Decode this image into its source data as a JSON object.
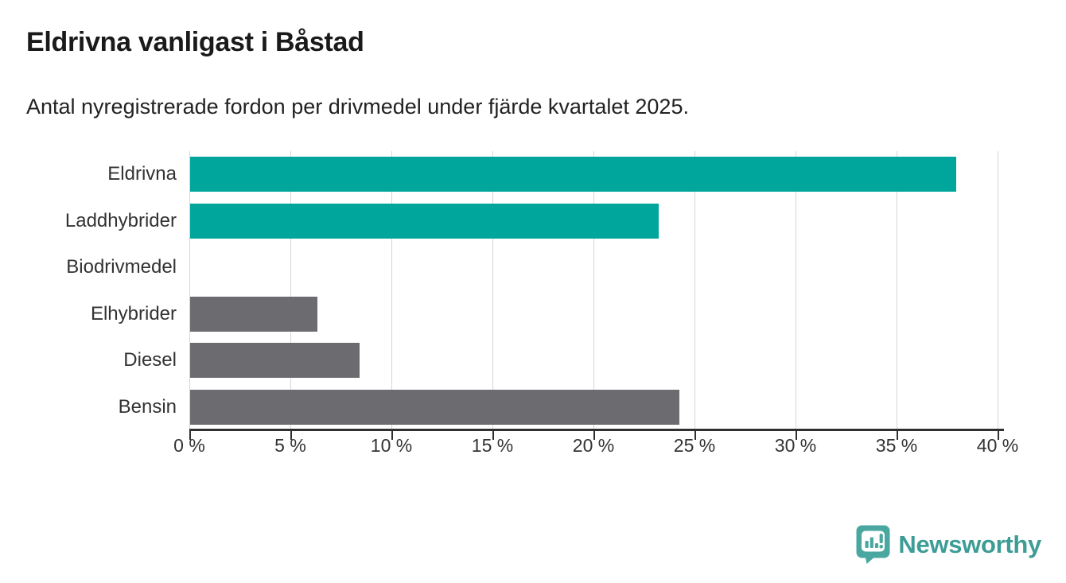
{
  "chart_data": {
    "type": "bar",
    "orientation": "horizontal",
    "title": "Eldrivna vanligast i Båstad",
    "subtitle": "Antal nyregistrerade fordon per drivmedel under fjärde kvartalet 2025.",
    "categories": [
      "Eldrivna",
      "Laddhybrider",
      "Biodrivmedel",
      "Elhybrider",
      "Diesel",
      "Bensin"
    ],
    "values": [
      37.9,
      23.2,
      0,
      6.3,
      8.4,
      24.2
    ],
    "unit": "%",
    "bar_colors": [
      "#00a69b",
      "#00a69b",
      "#6b6b70",
      "#6b6b70",
      "#6b6b70",
      "#6b6b70"
    ],
    "xlim": [
      0,
      40
    ],
    "xticks": [
      {
        "value": 0,
        "label": "0 %"
      },
      {
        "value": 5,
        "label": "5 %"
      },
      {
        "value": 10,
        "label": "10 %"
      },
      {
        "value": 15,
        "label": "15 %"
      },
      {
        "value": 20,
        "label": "20 %"
      },
      {
        "value": 25,
        "label": "25 %"
      },
      {
        "value": 30,
        "label": "30 %"
      },
      {
        "value": 35,
        "label": "35 %"
      },
      {
        "value": 40,
        "label": "40 %"
      }
    ],
    "grid": "vertical-light",
    "legend": "none",
    "xlabel": "",
    "ylabel": ""
  },
  "colors": {
    "electric_teal": "#00a69b",
    "other_gray": "#6b6b70",
    "gridline": "#d6d6d6",
    "axis": "#2f2f2f",
    "text": "#333333",
    "title_text": "#1a1a1a",
    "brand_teal": "#3d9c96",
    "brand_icon_teal": "#4aa7a0"
  },
  "branding": {
    "wordmark": "Newsworthy"
  }
}
